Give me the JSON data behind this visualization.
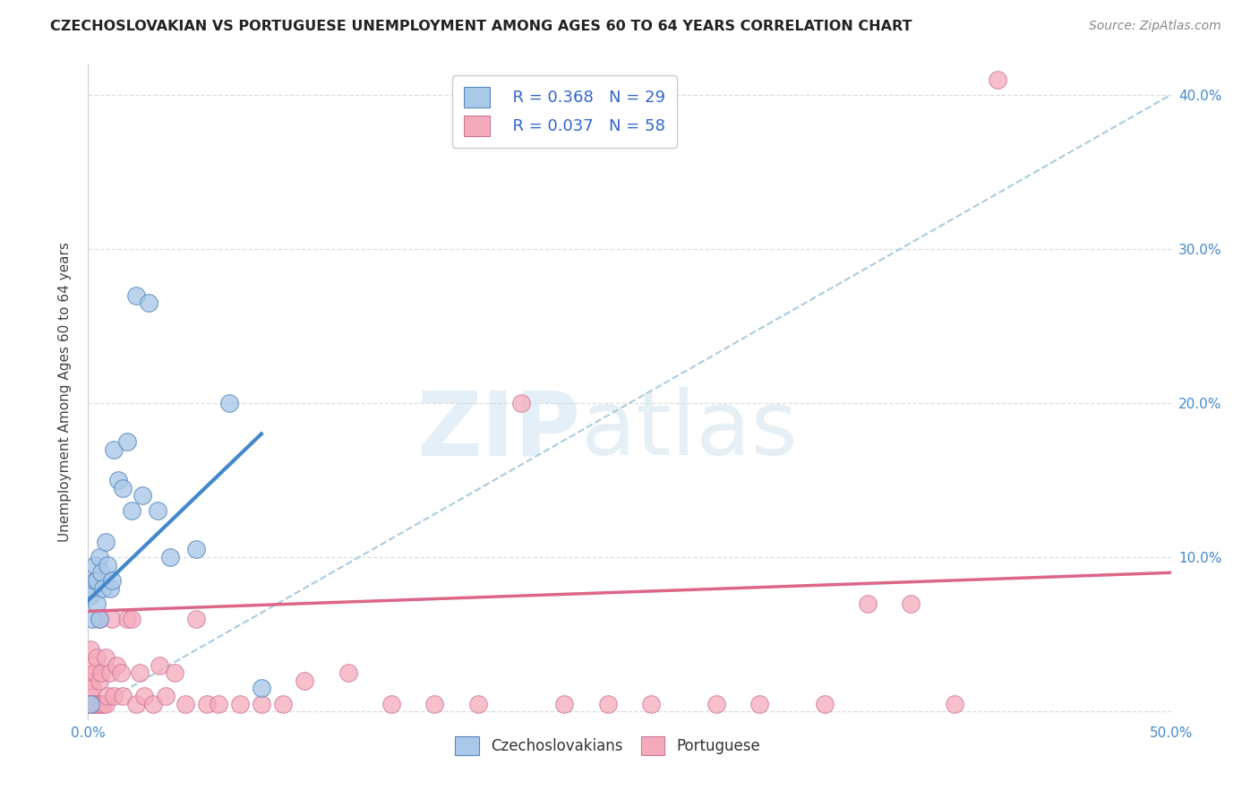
{
  "title": "CZECHOSLOVAKIAN VS PORTUGUESE UNEMPLOYMENT AMONG AGES 60 TO 64 YEARS CORRELATION CHART",
  "source": "Source: ZipAtlas.com",
  "ylabel": "Unemployment Among Ages 60 to 64 years",
  "xlim": [
    0,
    0.5
  ],
  "ylim": [
    -0.005,
    0.42
  ],
  "x_ticks": [
    0.0,
    0.1,
    0.2,
    0.3,
    0.4,
    0.5
  ],
  "x_tick_labels": [
    "0.0%",
    "",
    "",
    "",
    "",
    "50.0%"
  ],
  "y_ticks": [
    0.0,
    0.1,
    0.2,
    0.3,
    0.4
  ],
  "y_tick_labels_right": [
    "",
    "10.0%",
    "20.0%",
    "30.0%",
    "40.0%"
  ],
  "czech_color": "#aac8e8",
  "czech_edge_color": "#5588bb",
  "portuguese_color": "#f5aabb",
  "portuguese_edge_color": "#cc7799",
  "R_czech": 0.368,
  "N_czech": 29,
  "R_portuguese": 0.037,
  "N_portuguese": 58,
  "watermark_zip": "ZIP",
  "watermark_atlas": "atlas",
  "czech_x": [
    0.001,
    0.001,
    0.002,
    0.002,
    0.003,
    0.003,
    0.004,
    0.004,
    0.005,
    0.005,
    0.006,
    0.007,
    0.008,
    0.009,
    0.01,
    0.011,
    0.012,
    0.014,
    0.016,
    0.018,
    0.02,
    0.022,
    0.025,
    0.028,
    0.032,
    0.038,
    0.05,
    0.065,
    0.08
  ],
  "czech_y": [
    0.005,
    0.075,
    0.06,
    0.08,
    0.085,
    0.095,
    0.07,
    0.085,
    0.1,
    0.06,
    0.09,
    0.08,
    0.11,
    0.095,
    0.08,
    0.085,
    0.17,
    0.15,
    0.145,
    0.175,
    0.13,
    0.27,
    0.14,
    0.265,
    0.13,
    0.1,
    0.105,
    0.2,
    0.015
  ],
  "portuguese_x": [
    0.001,
    0.001,
    0.001,
    0.001,
    0.002,
    0.002,
    0.002,
    0.003,
    0.003,
    0.004,
    0.004,
    0.005,
    0.005,
    0.005,
    0.006,
    0.006,
    0.007,
    0.008,
    0.008,
    0.009,
    0.01,
    0.011,
    0.012,
    0.013,
    0.015,
    0.016,
    0.018,
    0.02,
    0.022,
    0.024,
    0.026,
    0.03,
    0.033,
    0.036,
    0.04,
    0.045,
    0.05,
    0.055,
    0.06,
    0.07,
    0.08,
    0.09,
    0.1,
    0.12,
    0.14,
    0.16,
    0.18,
    0.2,
    0.22,
    0.24,
    0.26,
    0.29,
    0.31,
    0.34,
    0.36,
    0.38,
    0.4,
    0.42
  ],
  "portuguese_y": [
    0.005,
    0.01,
    0.02,
    0.04,
    0.005,
    0.015,
    0.03,
    0.005,
    0.025,
    0.005,
    0.035,
    0.005,
    0.02,
    0.06,
    0.005,
    0.025,
    0.005,
    0.005,
    0.035,
    0.01,
    0.025,
    0.06,
    0.01,
    0.03,
    0.025,
    0.01,
    0.06,
    0.06,
    0.005,
    0.025,
    0.01,
    0.005,
    0.03,
    0.01,
    0.025,
    0.005,
    0.06,
    0.005,
    0.005,
    0.005,
    0.005,
    0.005,
    0.02,
    0.025,
    0.005,
    0.005,
    0.005,
    0.2,
    0.005,
    0.005,
    0.005,
    0.005,
    0.005,
    0.005,
    0.07,
    0.07,
    0.005,
    0.41
  ],
  "dashed_line_x": [
    0.0,
    0.5
  ],
  "dashed_line_y": [
    0.0,
    0.4
  ],
  "czech_trend_x": [
    0.0,
    0.08
  ],
  "czech_trend_y": [
    0.072,
    0.18
  ],
  "portuguese_trend_x": [
    0.0,
    0.5
  ],
  "portuguese_trend_y": [
    0.065,
    0.09
  ],
  "grid_color": "#dddddd",
  "title_fontsize": 11.5,
  "source_fontsize": 10,
  "tick_fontsize": 11,
  "ylabel_fontsize": 11
}
